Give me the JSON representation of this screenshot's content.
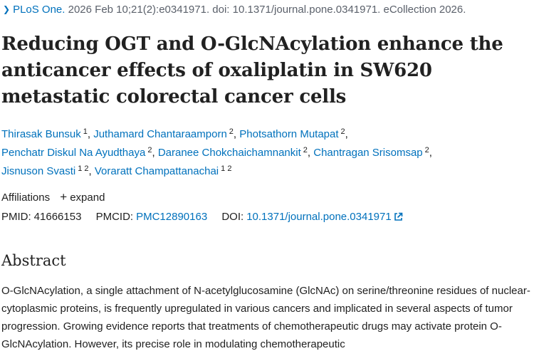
{
  "citation": {
    "journal": "PLoS One.",
    "details": "2026 Feb 10;21(2):e0341971. doi: 10.1371/journal.pone.0341971. eCollection 2026."
  },
  "title": "Reducing OGT and O-GlcNAcylation enhance the anticancer effects of oxaliplatin in SW620 metastatic colorectal cancer cells",
  "authors": [
    {
      "name": "Thirasak Bunsuk",
      "aff": "1"
    },
    {
      "name": "Juthamard Chantaraamporn",
      "aff": "2"
    },
    {
      "name": "Photsathorn Mutapat",
      "aff": "2"
    },
    {
      "name": "Penchatr Diskul Na Ayudthaya",
      "aff": "2"
    },
    {
      "name": "Daranee Chokchaichamnankit",
      "aff": "2"
    },
    {
      "name": "Chantragan Srisomsap",
      "aff": "2"
    },
    {
      "name": "Jisnuson Svasti",
      "aff": "1 2"
    },
    {
      "name": "Voraratt Champattanachai",
      "aff": "1 2"
    }
  ],
  "affiliations": {
    "label": "Affiliations",
    "toggle_symbol": "+",
    "toggle_label": "expand"
  },
  "ids": {
    "pmid_label": "PMID:",
    "pmid": "41666153",
    "pmcid_label": "PMCID:",
    "pmcid": "PMC12890163",
    "doi_label": "DOI:",
    "doi": "10.1371/journal.pone.0341971"
  },
  "abstract": {
    "heading": "Abstract",
    "text": "O-GlcNAcylation, a single attachment of N-acetylglucosamine (GlcNAc) on serine/threonine residues of nuclear-cytoplasmic proteins, is frequently upregulated in various cancers and implicated in several aspects of tumor progression. Growing evidence reports that treatments of chemotherapeutic drugs may activate protein O-GlcNAcylation. However, its precise role in modulating chemotherapeutic"
  },
  "colors": {
    "link": "#0071bc",
    "text": "#212121",
    "muted": "#5b616b"
  }
}
